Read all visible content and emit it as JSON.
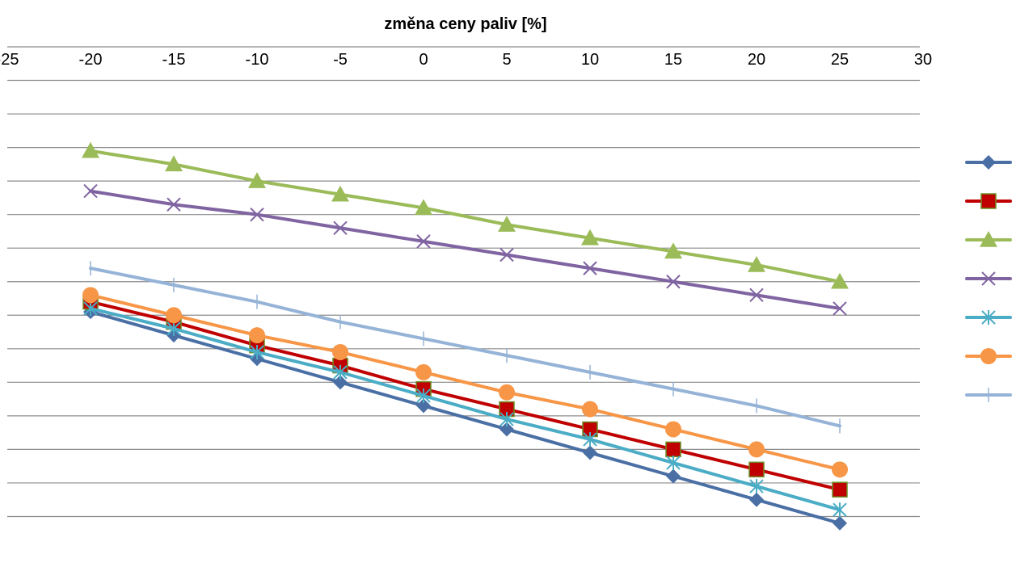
{
  "chart_data": {
    "type": "line",
    "xlabel": "změna ceny paliv [%]",
    "ylabel": "",
    "x_axis_position": "top",
    "x_ticks": [
      "-25",
      "-20",
      "-15",
      "-10",
      "-5",
      "0",
      "5",
      "10",
      "15",
      "20",
      "25",
      "30"
    ],
    "xlim": [
      -25,
      30
    ],
    "x": [
      -20,
      -15,
      -10,
      -5,
      0,
      5,
      10,
      15,
      20,
      25
    ],
    "ylim": [
      0,
      15
    ],
    "y_ticks_labeled": false,
    "grid": "horizontal",
    "legend": "right, entries without text",
    "series": [
      {
        "color": "#4A6FA5",
        "marker": "diamond",
        "values": [
          7.1,
          6.4,
          5.7,
          5.0,
          4.3,
          3.6,
          2.9,
          2.2,
          1.5,
          0.8
        ]
      },
      {
        "color": "#C00000",
        "marker": "square",
        "values": [
          7.4,
          6.8,
          6.1,
          5.5,
          4.8,
          4.2,
          3.6,
          3.0,
          2.4,
          1.8
        ]
      },
      {
        "color": "#9BBB59",
        "marker": "triangle",
        "values": [
          11.9,
          11.5,
          11.0,
          10.6,
          10.2,
          9.7,
          9.3,
          8.9,
          8.5,
          8.0
        ]
      },
      {
        "color": "#8064A2",
        "marker": "x",
        "values": [
          10.7,
          10.3,
          10.0,
          9.6,
          9.2,
          8.8,
          8.4,
          8.0,
          7.6,
          7.2
        ]
      },
      {
        "color": "#4BACC6",
        "marker": "star",
        "values": [
          7.2,
          6.6,
          5.9,
          5.3,
          4.6,
          3.9,
          3.3,
          2.6,
          1.9,
          1.2
        ]
      },
      {
        "color": "#F79646",
        "marker": "circle",
        "values": [
          7.6,
          7.0,
          6.4,
          5.9,
          5.3,
          4.7,
          4.2,
          3.6,
          3.0,
          2.4
        ]
      },
      {
        "color": "#95B3D7",
        "marker": "plus",
        "values": [
          8.4,
          7.9,
          7.4,
          6.8,
          6.3,
          5.8,
          5.3,
          4.8,
          4.3,
          3.7
        ]
      }
    ]
  }
}
